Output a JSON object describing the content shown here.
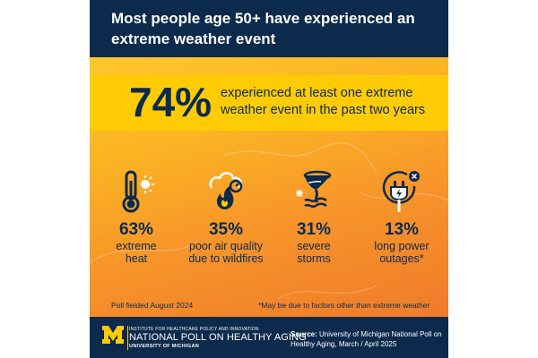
{
  "header": {
    "title": "Most people age 50+ have experienced an extreme weather event"
  },
  "headline": {
    "percent": "74%",
    "text": "experienced at least one extreme weather event in the past two years"
  },
  "stats": [
    {
      "percent": "63%",
      "label_line1": "extreme",
      "label_line2": "heat",
      "icon": "thermometer-sun-icon"
    },
    {
      "percent": "35%",
      "label_line1": "poor air quality",
      "label_line2": "due to wildfires",
      "icon": "smoke-fire-icon"
    },
    {
      "percent": "31%",
      "label_line1": "severe",
      "label_line2": "storms",
      "icon": "tornado-icon"
    },
    {
      "percent": "13%",
      "label_line1": "long power",
      "label_line2": "outages*",
      "icon": "plug-outage-icon"
    }
  ],
  "notes": {
    "fielded": "Poll fielded August 2024",
    "footnote": "*May be due to factors other than extreme weather"
  },
  "footer": {
    "org_line": "INSTITUTE FOR HEALTHCARE POLICY AND INNOVATION",
    "name": "NATIONAL POLL ON HEALTHY AGING",
    "university": "UNIVERSITY OF MICHIGAN",
    "source_label": "Source:",
    "source_text": "University of Michigan National Poll on Healthy Aging, March / April 2025"
  },
  "colors": {
    "navy": "#0b2a4c",
    "maize": "#ffcb05",
    "orange": "#ef7b2b"
  }
}
